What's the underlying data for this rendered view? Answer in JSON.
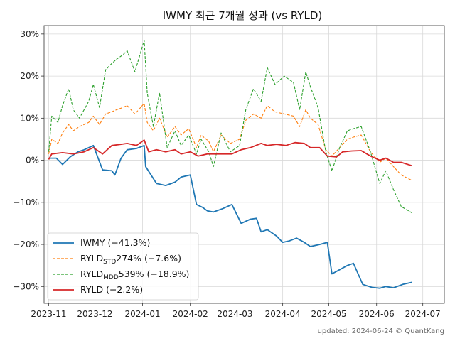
{
  "chart_data": {
    "type": "line",
    "title": "IWMY 최근 7개월 성과 (vs RYLD)",
    "xlabel": "",
    "ylabel": "",
    "grid": true,
    "legend_position": "lower-left",
    "x_range": [
      "2023-10-29",
      "2024-07-15"
    ],
    "ylim": [
      -34,
      32
    ],
    "x_ticks": [
      {
        "date": "2023-11-01",
        "label": "2023-11"
      },
      {
        "date": "2023-12-01",
        "label": "2023-12"
      },
      {
        "date": "2024-01-01",
        "label": "2024-01"
      },
      {
        "date": "2024-02-01",
        "label": "2024-02"
      },
      {
        "date": "2024-03-01",
        "label": "2024-03"
      },
      {
        "date": "2024-04-01",
        "label": "2024-04"
      },
      {
        "date": "2024-05-01",
        "label": "2024-05"
      },
      {
        "date": "2024-06-01",
        "label": "2024-06"
      },
      {
        "date": "2024-07-01",
        "label": "2024-07"
      }
    ],
    "y_ticks": [
      {
        "value": 30,
        "label": "30%"
      },
      {
        "value": 20,
        "label": "20%"
      },
      {
        "value": 10,
        "label": "10%"
      },
      {
        "value": 0,
        "label": "0%"
      },
      {
        "value": -10,
        "label": "−10%"
      },
      {
        "value": -20,
        "label": "−20%"
      },
      {
        "value": -30,
        "label": "−30%"
      }
    ],
    "series": [
      {
        "name": "IWMY (−41.3%)",
        "color": "#1f77b4",
        "style": "solid",
        "x": [
          "2023-11-01",
          "2023-11-06",
          "2023-11-10",
          "2023-11-15",
          "2023-11-20",
          "2023-11-24",
          "2023-11-30",
          "2023-12-06",
          "2023-12-12",
          "2023-12-14",
          "2023-12-18",
          "2023-12-22",
          "2023-12-28",
          "2024-01-02",
          "2024-01-03",
          "2024-01-10",
          "2024-01-16",
          "2024-01-22",
          "2024-01-26",
          "2024-02-01",
          "2024-02-05",
          "2024-02-09",
          "2024-02-12",
          "2024-02-16",
          "2024-02-22",
          "2024-02-28",
          "2024-03-05",
          "2024-03-11",
          "2024-03-15",
          "2024-03-18",
          "2024-03-22",
          "2024-03-28",
          "2024-04-01",
          "2024-04-05",
          "2024-04-10",
          "2024-04-15",
          "2024-04-19",
          "2024-04-25",
          "2024-04-30",
          "2024-05-03",
          "2024-05-08",
          "2024-05-13",
          "2024-05-17",
          "2024-05-23",
          "2024-05-29",
          "2024-06-03",
          "2024-06-07",
          "2024-06-12",
          "2024-06-18",
          "2024-06-24"
        ],
        "y": [
          0.5,
          0.5,
          -1.0,
          0.8,
          2.0,
          2.5,
          3.5,
          -2.3,
          -2.5,
          -3.5,
          0.5,
          2.5,
          2.8,
          3.5,
          -1.5,
          -5.5,
          -6.0,
          -5.2,
          -4.0,
          -3.5,
          -10.5,
          -11.2,
          -12.0,
          -12.3,
          -11.5,
          -10.5,
          -15.0,
          -14.0,
          -13.8,
          -17.0,
          -16.5,
          -18.0,
          -19.5,
          -19.2,
          -18.5,
          -19.5,
          -20.5,
          -20.0,
          -19.5,
          -27.0,
          -26.0,
          -25.0,
          -24.5,
          -29.5,
          -30.2,
          -30.4,
          -30.0,
          -30.3,
          -29.5,
          -29.0
        ]
      },
      {
        "name": "RYLDSTD 274% (−7.6%)",
        "name_main": "RYLD",
        "name_sub": "STD",
        "name_rest": " 274% (−7.6%)",
        "color": "#ff7f0e",
        "style": "dashed",
        "x": [
          "2023-11-01",
          "2023-11-03",
          "2023-11-07",
          "2023-11-10",
          "2023-11-14",
          "2023-11-17",
          "2023-11-21",
          "2023-11-27",
          "2023-11-30",
          "2023-12-04",
          "2023-12-08",
          "2023-12-12",
          "2023-12-15",
          "2023-12-19",
          "2023-12-22",
          "2023-12-27",
          "2024-01-02",
          "2024-01-04",
          "2024-01-08",
          "2024-01-12",
          "2024-01-17",
          "2024-01-22",
          "2024-01-26",
          "2024-01-31",
          "2024-02-05",
          "2024-02-08",
          "2024-02-13",
          "2024-02-16",
          "2024-02-21",
          "2024-02-27",
          "2024-03-04",
          "2024-03-08",
          "2024-03-13",
          "2024-03-18",
          "2024-03-22",
          "2024-03-27",
          "2024-04-02",
          "2024-04-08",
          "2024-04-12",
          "2024-04-16",
          "2024-04-19",
          "2024-04-24",
          "2024-04-29",
          "2024-05-03",
          "2024-05-08",
          "2024-05-13",
          "2024-05-17",
          "2024-05-22",
          "2024-05-28",
          "2024-06-03",
          "2024-06-07",
          "2024-06-12",
          "2024-06-17",
          "2024-06-24"
        ],
        "y": [
          1.5,
          5.0,
          4.0,
          6.5,
          8.5,
          7.0,
          8.0,
          9.0,
          10.5,
          8.5,
          11.0,
          11.5,
          12.0,
          12.5,
          13.0,
          11.0,
          13.5,
          9.0,
          7.0,
          10.0,
          5.5,
          8.0,
          6.0,
          7.5,
          3.0,
          6.0,
          4.5,
          2.0,
          6.0,
          4.0,
          5.0,
          9.5,
          11.0,
          10.0,
          13.0,
          11.5,
          11.0,
          10.5,
          8.0,
          12.0,
          10.0,
          8.5,
          2.5,
          1.0,
          3.0,
          5.0,
          5.5,
          6.0,
          2.0,
          -0.5,
          0.5,
          -1.5,
          -3.5,
          -4.8
        ]
      },
      {
        "name": "RYLDMDD 539% (−18.9%)",
        "name_main": "RYLD",
        "name_sub": "MDD",
        "name_rest": " 539% (−18.9%)",
        "color": "#2ca02c",
        "style": "dashed",
        "x": [
          "2023-11-01",
          "2023-11-03",
          "2023-11-07",
          "2023-11-10",
          "2023-11-14",
          "2023-11-17",
          "2023-11-21",
          "2023-11-27",
          "2023-11-30",
          "2023-12-04",
          "2023-12-08",
          "2023-12-12",
          "2023-12-15",
          "2023-12-19",
          "2023-12-22",
          "2023-12-27",
          "2024-01-02",
          "2024-01-04",
          "2024-01-08",
          "2024-01-12",
          "2024-01-17",
          "2024-01-22",
          "2024-01-26",
          "2024-01-31",
          "2024-02-05",
          "2024-02-08",
          "2024-02-13",
          "2024-02-16",
          "2024-02-21",
          "2024-02-27",
          "2024-03-04",
          "2024-03-08",
          "2024-03-13",
          "2024-03-18",
          "2024-03-22",
          "2024-03-27",
          "2024-04-02",
          "2024-04-08",
          "2024-04-12",
          "2024-04-16",
          "2024-04-19",
          "2024-04-24",
          "2024-04-29",
          "2024-05-03",
          "2024-05-08",
          "2024-05-13",
          "2024-05-17",
          "2024-05-22",
          "2024-05-28",
          "2024-06-03",
          "2024-06-07",
          "2024-06-12",
          "2024-06-17",
          "2024-06-24"
        ],
        "y": [
          2.0,
          10.5,
          9.0,
          13.0,
          17.0,
          12.0,
          10.0,
          14.0,
          18.0,
          12.5,
          21.5,
          23.0,
          24.0,
          25.0,
          26.0,
          21.0,
          28.5,
          16.0,
          8.0,
          16.0,
          3.0,
          7.0,
          3.5,
          6.0,
          1.5,
          5.0,
          2.0,
          -1.5,
          6.5,
          2.0,
          3.5,
          12.0,
          17.0,
          14.0,
          22.0,
          18.0,
          20.0,
          18.5,
          12.0,
          21.0,
          17.5,
          12.5,
          2.0,
          -2.5,
          3.0,
          7.0,
          7.5,
          8.0,
          2.0,
          -5.5,
          -2.5,
          -7.0,
          -11.0,
          -12.5
        ]
      },
      {
        "name": "RYLD (−2.2%)",
        "color": "#d62728",
        "style": "solid",
        "x": [
          "2023-11-01",
          "2023-11-03",
          "2023-11-10",
          "2023-11-17",
          "2023-11-24",
          "2023-11-30",
          "2023-12-06",
          "2023-12-12",
          "2023-12-18",
          "2023-12-22",
          "2023-12-28",
          "2024-01-02",
          "2024-01-05",
          "2024-01-10",
          "2024-01-16",
          "2024-01-22",
          "2024-01-26",
          "2024-02-01",
          "2024-02-06",
          "2024-02-12",
          "2024-02-16",
          "2024-02-22",
          "2024-02-28",
          "2024-03-05",
          "2024-03-11",
          "2024-03-18",
          "2024-03-22",
          "2024-03-28",
          "2024-04-03",
          "2024-04-09",
          "2024-04-15",
          "2024-04-19",
          "2024-04-25",
          "2024-04-30",
          "2024-05-06",
          "2024-05-10",
          "2024-05-16",
          "2024-05-22",
          "2024-05-28",
          "2024-06-03",
          "2024-06-07",
          "2024-06-12",
          "2024-06-17",
          "2024-06-24"
        ],
        "y": [
          0.2,
          1.5,
          1.8,
          1.5,
          2.0,
          3.0,
          1.5,
          3.5,
          3.8,
          4.0,
          3.5,
          4.8,
          2.0,
          2.5,
          2.0,
          2.5,
          1.5,
          2.0,
          1.0,
          1.5,
          1.5,
          1.5,
          1.5,
          2.5,
          3.0,
          4.0,
          3.5,
          3.8,
          3.5,
          4.2,
          4.0,
          3.0,
          3.0,
          1.0,
          0.8,
          2.0,
          2.2,
          2.3,
          1.0,
          0.0,
          0.5,
          -0.5,
          -0.5,
          -1.3
        ]
      }
    ]
  },
  "footer": "updated: 2024-06-24 © QuantKang"
}
